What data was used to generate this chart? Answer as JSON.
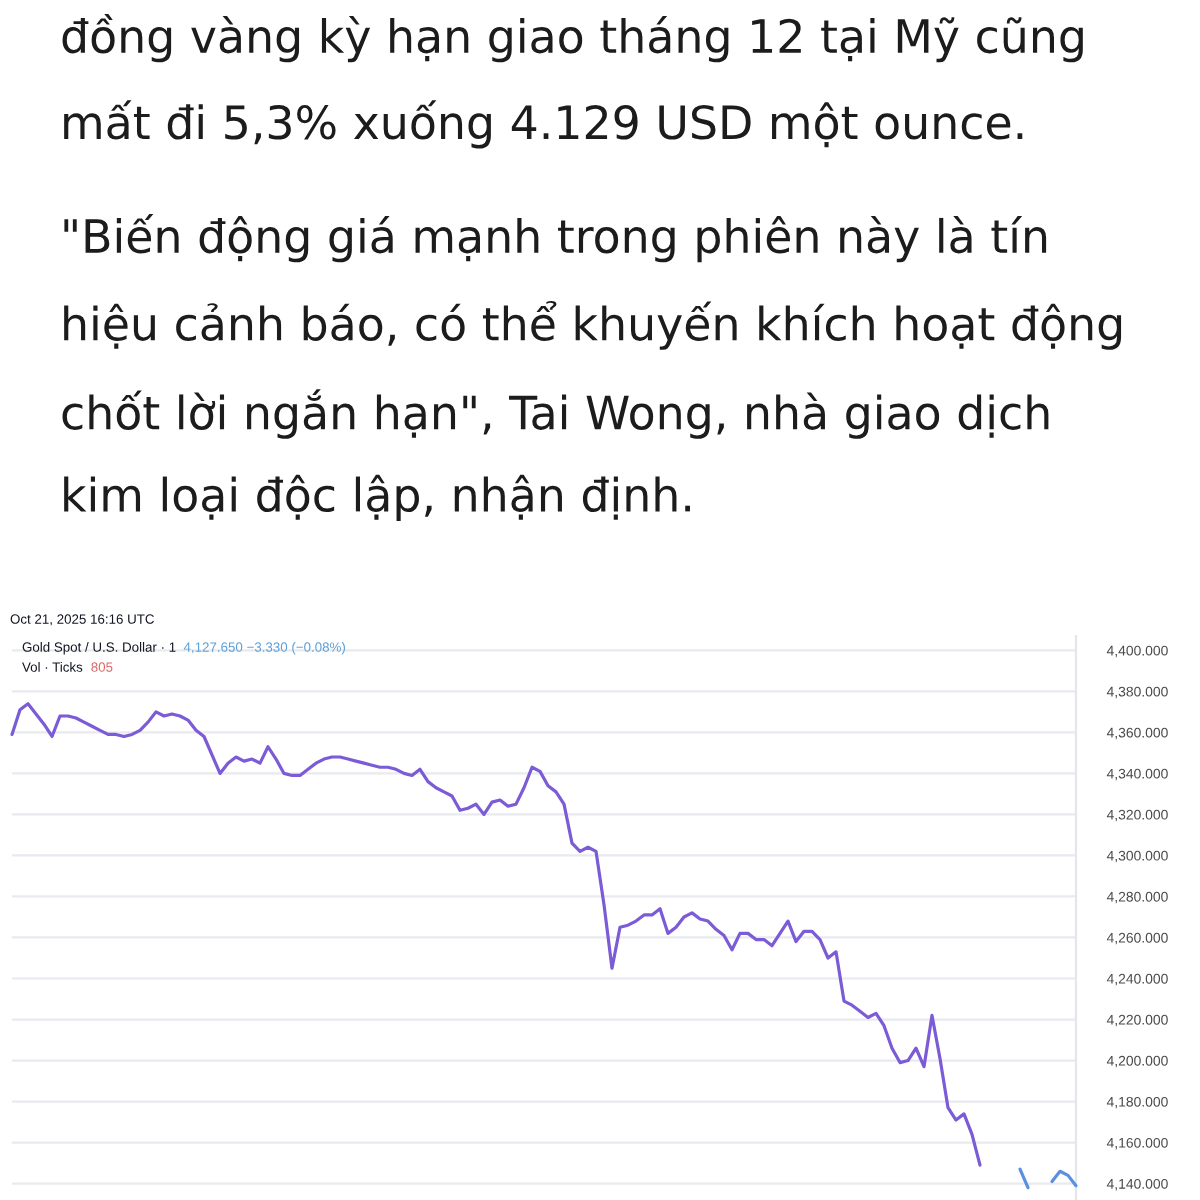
{
  "chart_data": {
    "type": "line",
    "annotations": [
      "đồng vàng kỳ hạn giao tháng 12 tại Mỹ cũng mất đi 5,3% xuống 4.129 USD một ounce.",
      "\"Biến động giá mạnh trong phiên này là tín hiệu cảnh báo, có thể khuyến khích hoạt động chốt lời ngắn hạn\", Tai Wong, nhà giao dịch kim loại độc lập, nhận định.",
      "Oct 21, 2025 16:16 UTC",
      "Gold Spot / U.S. Dollar · 1",
      "4,127.650 −3.330 (−0.08%)",
      "Vol · Ticks",
      "805"
    ],
    "categories": [
      null,
      null,
      null,
      null,
      null,
      null,
      null,
      null,
      null,
      null,
      null,
      null,
      null,
      null,
      null,
      null,
      null,
      null,
      null,
      null,
      null,
      null,
      null,
      null,
      null,
      null,
      null,
      null,
      null,
      null,
      null,
      null,
      null,
      null,
      null,
      null,
      null,
      null,
      null,
      null,
      null,
      null,
      null,
      null,
      null,
      null,
      null,
      null,
      null,
      null,
      null,
      null,
      null,
      null,
      null,
      null,
      null,
      null,
      null,
      null,
      null,
      null,
      null,
      null,
      null,
      null,
      null,
      null,
      null,
      null,
      null,
      null,
      null,
      null,
      null,
      null,
      null,
      null,
      null,
      null,
      null,
      null,
      null,
      null,
      null,
      null,
      null,
      null,
      null,
      null,
      null,
      null,
      null,
      null,
      null,
      null,
      null,
      null,
      null,
      null,
      null,
      null,
      null,
      null,
      null,
      null,
      null,
      null,
      null,
      null,
      null,
      null,
      null,
      null,
      null,
      null,
      null,
      null,
      null,
      null,
      null,
      null,
      null,
      null,
      null,
      null,
      null,
      null,
      null,
      null,
      null,
      null,
      null,
      null
    ],
    "series": [
      {
        "color": "#7b5bd6",
        "values": [
          4359,
          4371,
          4374,
          4369,
          4364,
          4358,
          4368,
          4368,
          4367,
          4365,
          4363,
          4361,
          4359,
          4359,
          4358,
          4359,
          4361,
          4365,
          4370,
          4368,
          4369,
          4368,
          4366,
          4361,
          4358,
          4349,
          4340,
          4345,
          4348,
          4346,
          4347,
          4345,
          4353,
          4347,
          4340,
          4339,
          4339,
          4342,
          4345,
          4347,
          4348,
          4348,
          4347,
          4346,
          4345,
          4344,
          4343,
          4343,
          4342,
          4340,
          4339,
          4342,
          4336,
          4333,
          4331,
          4329,
          4322,
          4323,
          4325,
          4320,
          4326,
          4327,
          4324,
          4325,
          4333,
          4343,
          4341,
          4334,
          4331,
          4325,
          4306,
          4302,
          4304,
          4302,
          4276,
          4245,
          4265,
          4266,
          4268,
          4271,
          4271,
          4274,
          4262,
          4265,
          4270,
          4272,
          4269,
          4268,
          4264,
          4261,
          4254,
          4262,
          4262,
          4259,
          4259,
          4256,
          4262,
          4268,
          4258,
          4263,
          4263,
          4259,
          4250,
          4253,
          4229,
          4227,
          4224,
          4221,
          4223,
          4217,
          4206,
          4199,
          4200,
          4206,
          4197,
          4222,
          4201,
          4177,
          4171,
          4174,
          4164,
          4149,
          null,
          null,
          null,
          null,
          null,
          null,
          null,
          null,
          null,
          null,
          null,
          null
        ]
      },
      {
        "color": "#5b8fe0",
        "values": [
          null,
          null,
          null,
          null,
          null,
          null,
          null,
          null,
          null,
          null,
          null,
          null,
          null,
          null,
          null,
          null,
          null,
          null,
          null,
          null,
          null,
          null,
          null,
          null,
          null,
          null,
          null,
          null,
          null,
          null,
          null,
          null,
          null,
          null,
          null,
          null,
          null,
          null,
          null,
          null,
          null,
          null,
          null,
          null,
          null,
          null,
          null,
          null,
          null,
          null,
          null,
          null,
          null,
          null,
          null,
          null,
          null,
          null,
          null,
          null,
          null,
          null,
          null,
          null,
          null,
          null,
          null,
          null,
          null,
          null,
          null,
          null,
          null,
          null,
          null,
          null,
          null,
          null,
          null,
          null,
          null,
          null,
          null,
          null,
          null,
          null,
          null,
          null,
          null,
          null,
          null,
          null,
          null,
          null,
          null,
          null,
          null,
          null,
          null,
          null,
          null,
          null,
          null,
          null,
          null,
          null,
          null,
          null,
          null,
          null,
          null,
          null,
          null,
          null,
          null,
          null,
          null,
          null,
          null,
          null,
          null,
          null,
          null,
          null,
          null,
          null,
          4147,
          4138,
          null,
          null,
          null,
          null,
          null,
          null
        ]
      },
      {
        "color": "#5b8fe0",
        "values": [
          null,
          null,
          null,
          null,
          null,
          null,
          null,
          null,
          null,
          null,
          null,
          null,
          null,
          null,
          null,
          null,
          null,
          null,
          null,
          null,
          null,
          null,
          null,
          null,
          null,
          null,
          null,
          null,
          null,
          null,
          null,
          null,
          null,
          null,
          null,
          null,
          null,
          null,
          null,
          null,
          null,
          null,
          null,
          null,
          null,
          null,
          null,
          null,
          null,
          null,
          null,
          null,
          null,
          null,
          null,
          null,
          null,
          null,
          null,
          null,
          null,
          null,
          null,
          null,
          null,
          null,
          null,
          null,
          null,
          null,
          null,
          null,
          null,
          null,
          null,
          null,
          null,
          null,
          null,
          null,
          null,
          null,
          null,
          null,
          null,
          null,
          null,
          null,
          null,
          null,
          null,
          null,
          null,
          null,
          null,
          null,
          null,
          null,
          null,
          null,
          null,
          null,
          null,
          null,
          null,
          null,
          null,
          null,
          null,
          null,
          null,
          null,
          null,
          null,
          null,
          null,
          null,
          null,
          null,
          null,
          null,
          null,
          null,
          null,
          null,
          null,
          null,
          null,
          null,
          null,
          4141,
          4146,
          4144,
          4139
        ]
      }
    ],
    "ylim": [
      4132,
      4407
    ],
    "yticks": [
      {
        "value": 4140,
        "label": "4,140.000"
      },
      {
        "value": 4160,
        "label": "4,160.000"
      },
      {
        "value": 4180,
        "label": "4,180.000"
      },
      {
        "value": 4200,
        "label": "4,200.000"
      },
      {
        "value": 4220,
        "label": "4,220.000"
      },
      {
        "value": 4240,
        "label": "4,240.000"
      },
      {
        "value": 4260,
        "label": "4,260.000"
      },
      {
        "value": 4280,
        "label": "4,280.000"
      },
      {
        "value": 4300,
        "label": "4,300.000"
      },
      {
        "value": 4320,
        "label": "4,320.000"
      },
      {
        "value": 4340,
        "label": "4,340.000"
      },
      {
        "value": 4360,
        "label": "4,360.000"
      },
      {
        "value": 4380,
        "label": "4,380.000"
      },
      {
        "value": 4400,
        "label": "4,400.000"
      }
    ],
    "grid": "y",
    "tick_labels": "y"
  }
}
